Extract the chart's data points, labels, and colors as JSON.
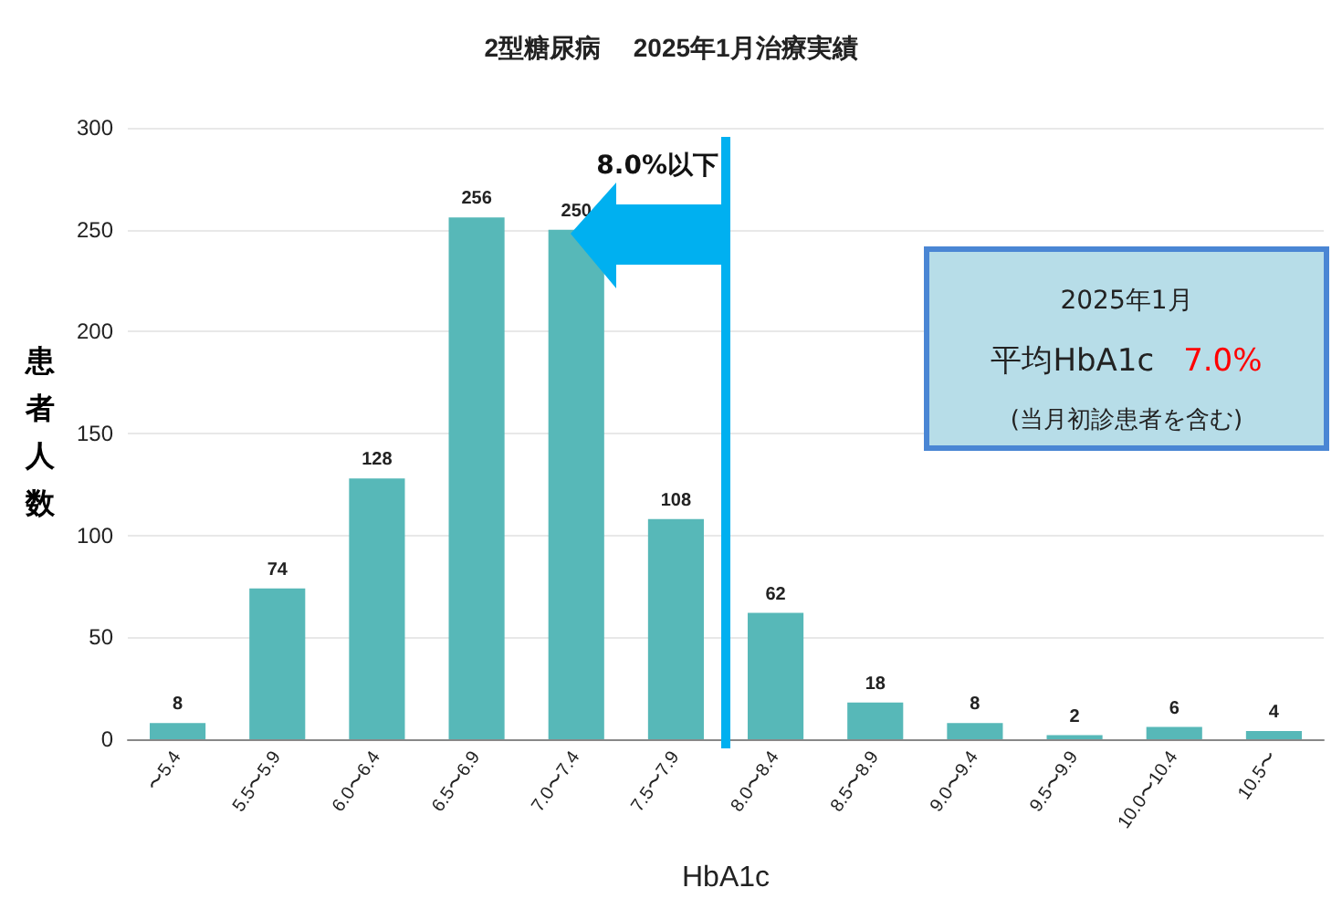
{
  "chart_data": {
    "type": "bar",
    "title": "2型糖尿病　 2025年1月治療実績",
    "xlabel": "HbA1c",
    "ylabel": "患者人数",
    "categories": [
      "〜5.4",
      "5.5〜5.9",
      "6.0〜6.4",
      "6.5〜6.9",
      "7.0〜7.4",
      "7.5〜7.9",
      "8.0〜8.4",
      "8.5〜8.9",
      "9.0〜9.4",
      "9.5〜9.9",
      "10.0〜10.4",
      "10.5〜"
    ],
    "values": [
      8,
      74,
      128,
      256,
      250,
      108,
      62,
      18,
      8,
      2,
      6,
      4
    ],
    "color": "#57b8b8",
    "ylim": [
      0,
      300
    ],
    "yticks": [
      0,
      50,
      100,
      150,
      200,
      250,
      300
    ],
    "grid": "y",
    "data_labels": true,
    "ref_lines": [
      {
        "axis": "x",
        "value": "8.0〜8.4",
        "label": "8.0%以下",
        "color": "#00b0f0"
      }
    ],
    "annotations": [
      "2025年1月",
      "平均HbA1c",
      "7.0%",
      "(当月初診患者を含む)"
    ]
  }
}
